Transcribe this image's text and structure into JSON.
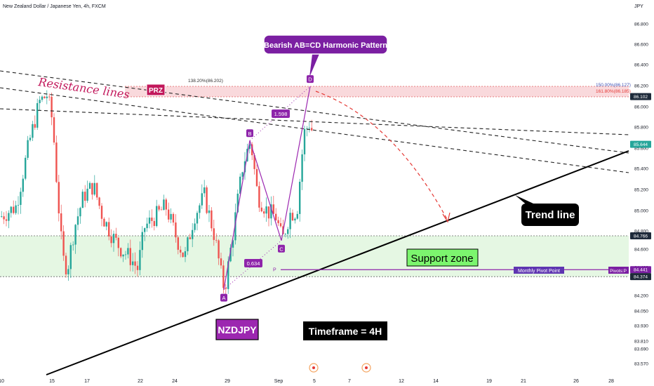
{
  "header": {
    "title": "New Zealand Dollar / Japanese Yen, 4h, FXCM",
    "currency": "JPY"
  },
  "chart_data": {
    "type": "candlestick",
    "symbol": "NZDJPY",
    "timeframe": "4h",
    "ylim": [
      83.55,
      86.95
    ],
    "y_ticks": [
      "86.800",
      "86.600",
      "86.400",
      "86.200",
      "86.000",
      "85.800",
      "85.600",
      "85.400",
      "85.200",
      "85.000",
      "84.800",
      "84.600",
      "84.400",
      "84.200",
      "84.050",
      "83.930",
      "83.810",
      "83.690",
      "83.570"
    ],
    "x_ticks": [
      "10",
      "15",
      "17",
      "22",
      "24",
      "29",
      "Sep",
      "5",
      "7",
      "12",
      "14",
      "19",
      "21",
      "26",
      "28"
    ],
    "price_badges": [
      {
        "value": "86.102",
        "price": 86.102,
        "bg": "#1e2a3a",
        "fg": "#ffffff"
      },
      {
        "value": "85.644",
        "price": 85.644,
        "bg": "#26a69a",
        "fg": "#ffffff"
      },
      {
        "value": "84.766",
        "price": 84.766,
        "bg": "#1e2a3a",
        "fg": "#ffffff"
      },
      {
        "value": "84.441",
        "price": 84.441,
        "bg": "#7b1fa2",
        "fg": "#ffffff"
      },
      {
        "value": "84.374",
        "price": 84.374,
        "bg": "#1e2a3a",
        "fg": "#ffffff"
      }
    ],
    "pattern": {
      "name": "Bearish AB=CD Harmonic Pattern",
      "points": [
        {
          "label": "A",
          "price": 84.25
        },
        {
          "label": "B",
          "price": 85.68
        },
        {
          "label": "C",
          "price": 84.72
        },
        {
          "label": "D",
          "price": 86.2
        }
      ],
      "ratios": [
        "0.634",
        "1.598"
      ]
    },
    "prz": {
      "label": "PRZ",
      "top": 86.2,
      "bottom": 86.1
    },
    "fib_labels": [
      "138.20%(86.202)",
      "150.00%(86.127)",
      "161.80%(86.185)"
    ],
    "support_zone": {
      "label": "Support zone",
      "top": 84.766,
      "bottom": 84.374
    },
    "pivot": {
      "label": "Monthly Pivot Point",
      "price": 84.441,
      "marker": "P",
      "tag": "Pivots:P"
    },
    "annotations": {
      "resistance": "Resistance lines",
      "trend": "Trend line",
      "symbol_box": "NZDJPY",
      "timeframe_box": "Timeframe = 4H"
    },
    "colors": {
      "up": "#26a69a",
      "down": "#ef5350",
      "pattern": "#9c27b0",
      "support": "#e5f7e3",
      "prz": "#f8d5d8"
    },
    "candles": []
  }
}
